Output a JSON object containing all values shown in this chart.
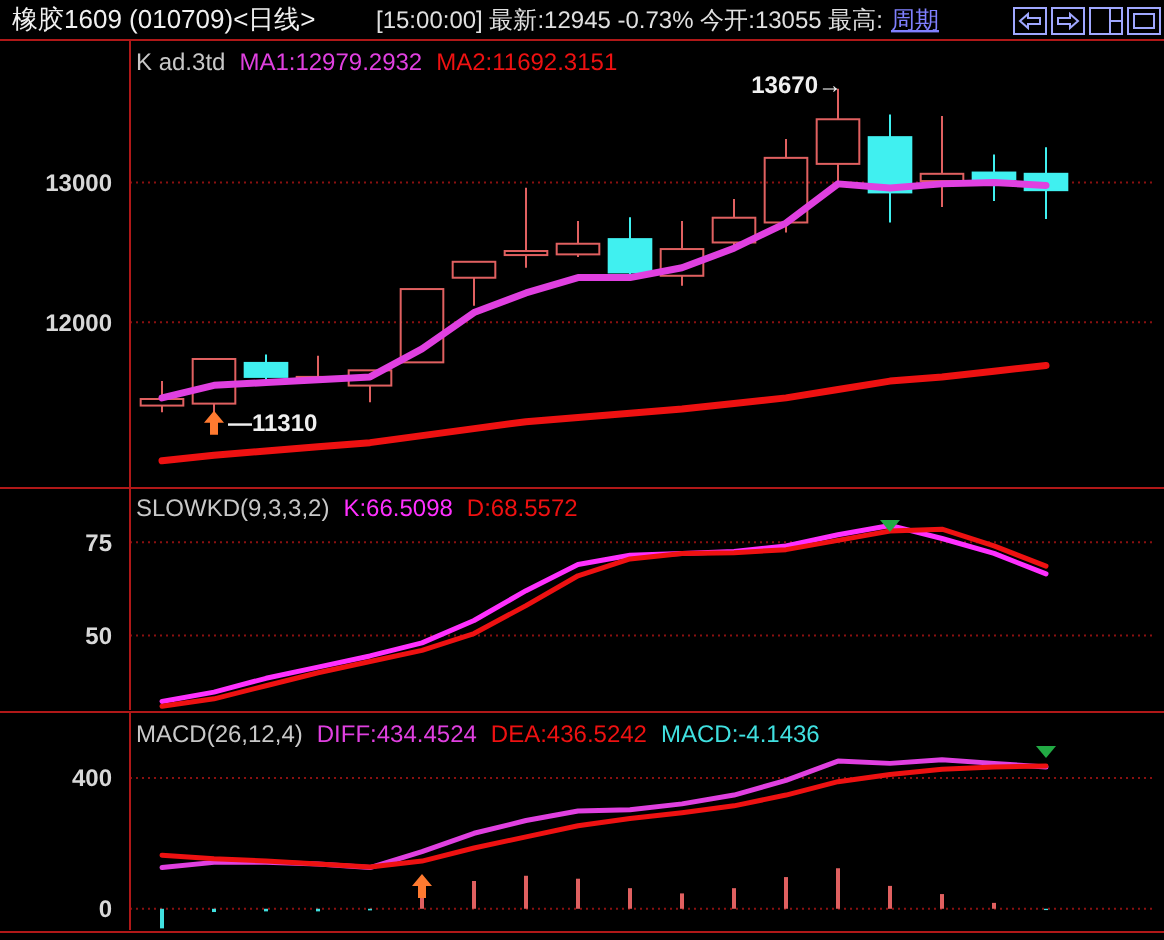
{
  "chart_data": [
    {
      "type": "candlestick",
      "title": "橡胶1609 (010709)<日线>",
      "subtitle": "[15:00:00] 最新:12945 -0.73% 今开:13055 最高:",
      "annotations": [
        "K  ad.3td",
        "周期",
        "13670→",
        "—11310"
      ],
      "categories": [
        null,
        null,
        null,
        null,
        null,
        null,
        null,
        null,
        null,
        null,
        null,
        null,
        null,
        null,
        null,
        null,
        null,
        null
      ],
      "ohlc": [
        [
          11405,
          11581,
          11357,
          11452
        ],
        [
          11419,
          11738,
          11310,
          11738
        ],
        [
          11710,
          11771,
          11581,
          11610
        ],
        [
          11605,
          11762,
          11571,
          11610
        ],
        [
          11548,
          11657,
          11429,
          11657
        ],
        [
          11714,
          12238,
          11714,
          12238
        ],
        [
          12319,
          12433,
          12119,
          12433
        ],
        [
          12481,
          12962,
          12390,
          12510
        ],
        [
          12486,
          12724,
          12467,
          12562
        ],
        [
          12595,
          12752,
          12333,
          12357
        ],
        [
          12333,
          12724,
          12262,
          12524
        ],
        [
          12571,
          12881,
          12524,
          12748
        ],
        [
          12714,
          13310,
          12643,
          13176
        ],
        [
          13133,
          13670,
          13000,
          13452
        ],
        [
          13324,
          13486,
          12714,
          12929
        ],
        [
          13010,
          13476,
          12824,
          13062
        ],
        [
          13071,
          13200,
          12867,
          13024
        ],
        [
          13062,
          13252,
          12738,
          12945
        ]
      ],
      "series": [
        {
          "name": "MA1:12979.2932",
          "type": "line",
          "color": "#e040e0",
          "values": [
            11460,
            11550,
            11570,
            11590,
            11610,
            11810,
            12070,
            12210,
            12320,
            12320,
            12390,
            12530,
            12710,
            12990,
            12960,
            12990,
            13000,
            12979
          ]
        },
        {
          "name": "MA2:11692.3151",
          "type": "line",
          "color": "#ee1111",
          "values": [
            11010,
            11050,
            11080,
            11110,
            11140,
            11190,
            11240,
            11290,
            11320,
            11350,
            11380,
            11420,
            11460,
            11520,
            11580,
            11610,
            11650,
            11692
          ]
        }
      ],
      "ylim": [
        10830,
        13990
      ],
      "yticks": [
        12000,
        13000
      ],
      "grid": "y",
      "legend": "top left"
    },
    {
      "type": "line",
      "title": "SLOWKD(9,3,3,2)",
      "categories": [
        null,
        null,
        null,
        null,
        null,
        null,
        null,
        null,
        null,
        null,
        null,
        null,
        null,
        null,
        null,
        null,
        null,
        null
      ],
      "series": [
        {
          "name": "K:66.5098",
          "color": "#ff30ff",
          "values": [
            32.3,
            34.8,
            38.5,
            41.5,
            44.5,
            48,
            54,
            62,
            69,
            71.5,
            72,
            72.5,
            74,
            77,
            79.5,
            76,
            72,
            66.5
          ]
        },
        {
          "name": "D:68.5572",
          "color": "#ee1111",
          "values": [
            31,
            33,
            36.5,
            40,
            43,
            46,
            50.5,
            58,
            66,
            70.5,
            72,
            72.2,
            73,
            75.5,
            78,
            78.5,
            74,
            68.6
          ]
        }
      ],
      "ylim": [
        30,
        89
      ],
      "yticks": [
        50,
        75
      ],
      "grid": "y",
      "legend": "top left"
    },
    {
      "type": "line",
      "title": "MACD(26,12,4)",
      "categories": [
        null,
        null,
        null,
        null,
        null,
        null,
        null,
        null,
        null,
        null,
        null,
        null,
        null,
        null,
        null,
        null,
        null,
        null
      ],
      "series": [
        {
          "name": "DIFF:434.4524",
          "color": "#e040e0",
          "values": [
            126,
            142,
            142,
            137,
            126,
            175,
            231,
            270,
            299,
            303,
            321,
            348,
            393,
            452,
            445,
            456,
            445,
            434
          ]
        },
        {
          "name": "DEA:436.5242",
          "color": "#ee1111",
          "values": [
            164,
            153,
            146,
            137,
            128,
            146,
            186,
            220,
            254,
            276,
            294,
            315,
            348,
            389,
            411,
            427,
            434,
            437
          ]
        },
        {
          "name": "MACD:-4.1436",
          "type": "bar",
          "colors": [
            "#40e0e0",
            "#40e0e0",
            "#40e0e0",
            "#40e0e0",
            "#40e0e0",
            "#e06060",
            "#e06060",
            "#e06060",
            "#e06060",
            "#e06060",
            "#e06060",
            "#e06060",
            "#e06060",
            "#e06060",
            "#e06060",
            "#e06060",
            "#e06060",
            "#40e0e0"
          ],
          "values": [
            -60,
            -10,
            -8,
            -8,
            -5,
            40,
            85,
            101,
            92,
            63,
            47,
            63,
            97,
            124,
            70,
            45,
            18,
            -4
          ]
        }
      ],
      "ylim": [
        -65,
        590
      ],
      "yticks": [
        0,
        400
      ],
      "grid": "y",
      "legend": "top left"
    }
  ]
}
